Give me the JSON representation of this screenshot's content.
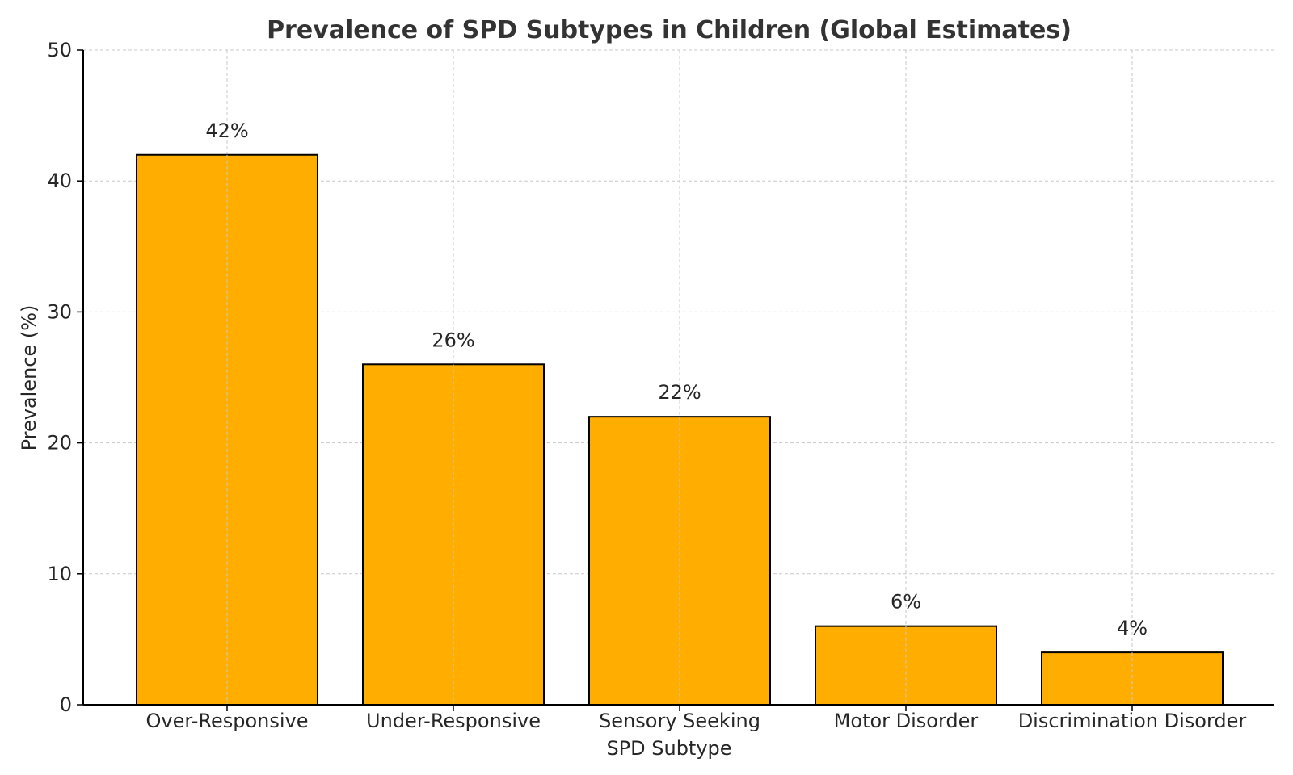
{
  "chart_data": {
    "type": "bar",
    "title": "Prevalence of SPD Subtypes in Children (Global Estimates)",
    "xlabel": "SPD Subtype",
    "ylabel": "Prevalence (%)",
    "categories": [
      "Over-Responsive",
      "Under-Responsive",
      "Sensory Seeking",
      "Motor Disorder",
      "Discrimination Disorder"
    ],
    "values": [
      42,
      26,
      22,
      6,
      4
    ],
    "data_labels": [
      "42%",
      "26%",
      "22%",
      "6%",
      "4%"
    ],
    "ylim": [
      0,
      50
    ],
    "yticks": [
      0,
      10,
      20,
      30,
      40,
      50
    ],
    "grid": true,
    "bar_color": "#FFAE00",
    "edge_color": "#000000"
  }
}
